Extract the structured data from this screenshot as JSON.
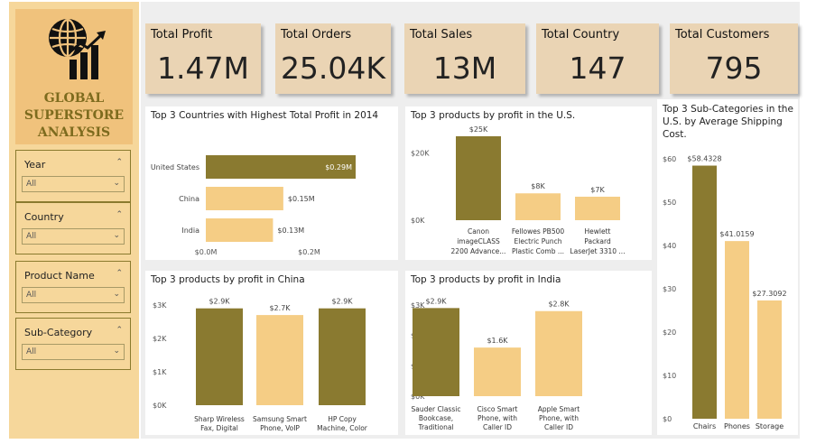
{
  "sidebar": {
    "logo_title_lines": [
      "GLOBAL",
      "SUPERSTORE",
      "ANALYSIS"
    ],
    "slicers": [
      {
        "label": "Year",
        "value": "All"
      },
      {
        "label": "Country",
        "value": "All"
      },
      {
        "label": "Product Name",
        "value": "All"
      },
      {
        "label": "Sub-Category",
        "value": "All"
      }
    ]
  },
  "kpis": [
    {
      "label": "Total Profit",
      "value": "1.47M"
    },
    {
      "label": "Total Orders",
      "value": "25.04K"
    },
    {
      "label": "Total Sales",
      "value": "13M"
    },
    {
      "label": "Total Country",
      "value": "147"
    },
    {
      "label": "Total Customers",
      "value": "795"
    }
  ],
  "colors": {
    "dark": "#8a7a30",
    "light": "#f5cd85"
  },
  "chart_data": [
    {
      "type": "bar",
      "orientation": "horizontal",
      "title": "Top 3 Countries with Highest Total Profit in 2014",
      "categories": [
        "United States",
        "China",
        "India"
      ],
      "values": [
        0.29,
        0.15,
        0.13
      ],
      "data_labels": [
        "$0.29M",
        "$0.15M",
        "$0.13M"
      ],
      "highlight_index": 0,
      "xlim": [
        0,
        0.29
      ],
      "x_ticks": [
        0,
        0.2
      ],
      "x_tick_labels": [
        "$0.0M",
        "$0.2M"
      ]
    },
    {
      "type": "bar",
      "title": "Top 3 products by profit in the U.S.",
      "categories": [
        [
          "Canon",
          "imageCLASS",
          "2200 Advance..."
        ],
        [
          "Fellowes PB500",
          "Electric Punch",
          "Plastic Comb ..."
        ],
        [
          "Hewlett",
          "Packard",
          "LaserJet 3310 ..."
        ]
      ],
      "values": [
        25,
        8,
        7
      ],
      "data_labels": [
        "$25K",
        "$8K",
        "$7K"
      ],
      "highlight_index": 0,
      "ylim": [
        0,
        25
      ],
      "y_ticks": [
        0,
        20
      ],
      "y_tick_labels": [
        "$0K",
        "$20K"
      ]
    },
    {
      "type": "bar",
      "title": "Top 3 Sub-Categories in the U.S. by Average Shipping Cost.",
      "categories": [
        [
          "Chairs"
        ],
        [
          "Phones"
        ],
        [
          "Storage"
        ]
      ],
      "values": [
        58.4328,
        41.0159,
        27.3092
      ],
      "data_labels": [
        "$58.4328",
        "$41.0159",
        "$27.3092"
      ],
      "highlight_index": 0,
      "ylim": [
        0,
        60
      ],
      "y_ticks": [
        0,
        10,
        20,
        30,
        40,
        50,
        60
      ],
      "y_tick_labels": [
        "$0",
        "$10",
        "$20",
        "$30",
        "$40",
        "$50",
        "$60"
      ]
    },
    {
      "type": "bar",
      "title": "Top 3 products by profit in China",
      "categories": [
        [
          "Sharp Wireless",
          "Fax, Digital"
        ],
        [
          "Samsung Smart",
          "Phone, VoIP"
        ],
        [
          "HP Copy",
          "Machine, Color"
        ]
      ],
      "values": [
        2.9,
        2.7,
        2.9
      ],
      "data_labels": [
        "$2.9K",
        "$2.7K",
        "$2.9K"
      ],
      "highlight_index": [
        0,
        2
      ],
      "ylim": [
        0,
        3
      ],
      "y_ticks": [
        0,
        1,
        2,
        3
      ],
      "y_tick_labels": [
        "$0K",
        "$1K",
        "$2K",
        "$3K"
      ]
    },
    {
      "type": "bar",
      "title": "Top 3 products by profit in India",
      "categories": [
        [
          "Sauder Classic",
          "Bookcase,",
          "Traditional"
        ],
        [
          "Cisco Smart",
          "Phone, with",
          "Caller ID"
        ],
        [
          "Apple Smart",
          "Phone, with",
          "Caller ID"
        ]
      ],
      "values": [
        2.9,
        1.6,
        2.8
      ],
      "data_labels": [
        "$2.9K",
        "$1.6K",
        "$2.8K"
      ],
      "highlight_index": 0,
      "ylim": [
        0,
        3
      ],
      "y_ticks": [
        0,
        1,
        2,
        3
      ],
      "y_tick_labels": [
        "$0K",
        "$1K",
        "$2K",
        "$3K"
      ]
    }
  ]
}
